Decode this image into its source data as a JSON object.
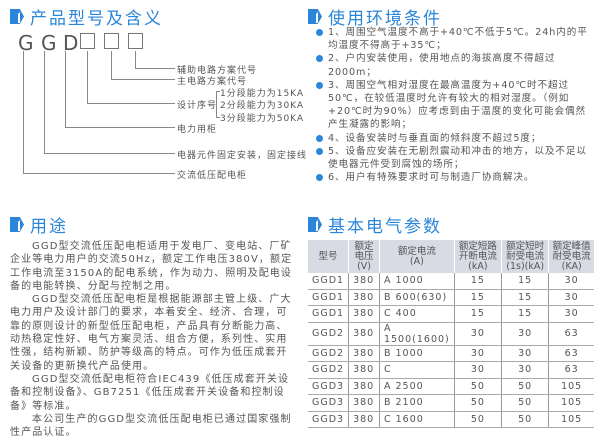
{
  "model": {
    "title": "产品型号及含义",
    "letters": [
      "G",
      "G",
      "D"
    ],
    "labels": {
      "aux": "辅助电路方案代号",
      "main": "主电路方案代号",
      "design": "设计序号",
      "d1": "1分段能力为15KA",
      "d2": "2分段能力为30KA",
      "d3": "3分段能力为50KA",
      "power": "电力用柜",
      "fixed": "电器元件固定安装，固定接线",
      "ac": "交流低压配电柜"
    }
  },
  "env": {
    "title": "使用环境条件",
    "items": [
      "1、周围空气温度不高于+40℃不低于5℃。24h内的平均温度不得高于+35℃；",
      "2、户内安装使用，使用地点的海拔高度不得超过2000m；",
      "3、周围空气相对湿度在最高温度为+40℃时不超过50℃，在较低温度时允许有较大的相对湿度。（例如+20℃时为90%）应考虑到由于温度的变化可能会偶然产生凝露的影响；",
      "4、设备安装时与垂直面的倾斜度不超过5度；",
      "5、设备应安装在无剧烈震动和冲击的地方，以及不足以使电器元件受到腐蚀的场所；",
      "6、用户有特殊要求时可与制造厂协商解决。"
    ]
  },
  "use": {
    "title": "用途",
    "paragraphs": [
      "GGD型交流低压配电柜适用于发电厂、变电站、厂矿企业等电力用户的交流50Hz，额定工作电压380V，额定工作电流至3150A的配电系统，作为动力、照明及配电设备的电能转换、分配与控制之用。",
      "GGD型交流低压配电柜是根据能源部主管上级、广大电力用户及设计部门的要求，本着安全、经济、合理，可靠的原则设计的新型低压配电柜，产品具有分断能力高、动热稳定性好、电气方案灵活、组合方便，系列性、实用性强，结构新颖、防护等级高的特点。可作为低压成套开关设备的更新换代产品使用。",
      "GGD型交流低配电柜符合IEC439《低压成套开关设备和控制设备》、GB7251《低压成套开关设备和控制设备》等标准。",
      "本公司生产的GGD型交流低压配电柜已通过国家强制性产品认证。"
    ]
  },
  "params": {
    "title": "基本电气参数",
    "headers": [
      [
        "型号"
      ],
      [
        "额定",
        "电压",
        "(V)"
      ],
      [
        "额定电流",
        "(A)"
      ],
      [
        "额定短路",
        "开断电流",
        "(kA)"
      ],
      [
        "额定短时",
        "耐受电流",
        "(1s)(kA)"
      ],
      [
        "额定峰值",
        "耐受电流",
        "(KA)"
      ]
    ],
    "rows": [
      [
        "GGD1",
        "380",
        "A 1000",
        "15",
        "15",
        "30"
      ],
      [
        "GGD1",
        "380",
        "B 600(630)",
        "15",
        "15",
        "30"
      ],
      [
        "GGD1",
        "380",
        "C 400",
        "15",
        "15",
        "30"
      ],
      [
        "GGD2",
        "380",
        "A 1500(1600)",
        "30",
        "30",
        "63"
      ],
      [
        "GGD2",
        "380",
        "B 1000",
        "30",
        "30",
        "63"
      ],
      [
        "GGD2",
        "380",
        "C",
        "30",
        "30",
        "63"
      ],
      [
        "GGD3",
        "380",
        "A 2500",
        "50",
        "50",
        "105"
      ],
      [
        "GGD3",
        "380",
        "B 2100",
        "50",
        "50",
        "105"
      ],
      [
        "GGD3",
        "380",
        "C 1600",
        "50",
        "50",
        "105"
      ]
    ]
  }
}
